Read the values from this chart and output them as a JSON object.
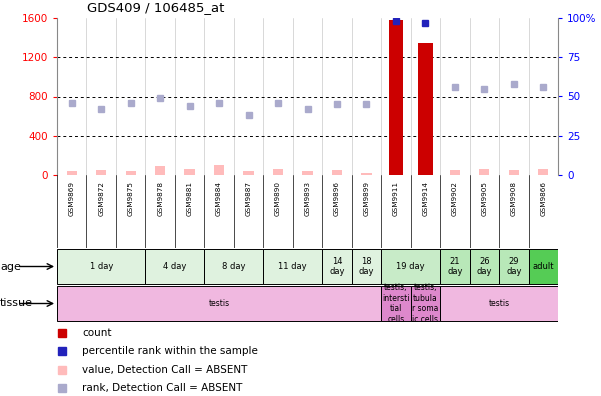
{
  "title": "GDS409 / 106485_at",
  "samples": [
    "GSM9869",
    "GSM9872",
    "GSM9875",
    "GSM9878",
    "GSM9881",
    "GSM9884",
    "GSM9887",
    "GSM9890",
    "GSM9893",
    "GSM9896",
    "GSM9899",
    "GSM9911",
    "GSM9914",
    "GSM9902",
    "GSM9905",
    "GSM9908",
    "GSM9866"
  ],
  "count_values": [
    null,
    null,
    null,
    null,
    null,
    null,
    null,
    null,
    null,
    null,
    null,
    1580,
    1350,
    null,
    null,
    null,
    null
  ],
  "percentile_rank_pct": [
    null,
    null,
    null,
    null,
    null,
    null,
    null,
    null,
    null,
    null,
    null,
    98,
    97,
    null,
    null,
    null,
    null
  ],
  "absent_value": [
    45,
    55,
    45,
    90,
    60,
    100,
    45,
    65,
    40,
    50,
    25,
    null,
    null,
    55,
    60,
    55,
    65
  ],
  "absent_rank_pct": [
    46,
    42,
    46,
    49,
    44,
    46,
    38,
    46,
    42,
    45,
    45,
    null,
    null,
    56,
    55,
    58,
    56
  ],
  "ylim_left": [
    0,
    1600
  ],
  "ylim_right": [
    0,
    100
  ],
  "yticks_left": [
    0,
    400,
    800,
    1200,
    1600
  ],
  "yticks_right": [
    0,
    25,
    50,
    75,
    100
  ],
  "age_groups": [
    {
      "label": "1 day",
      "start": 0,
      "end": 3,
      "color": "#dff2df"
    },
    {
      "label": "4 day",
      "start": 3,
      "end": 5,
      "color": "#dff2df"
    },
    {
      "label": "8 day",
      "start": 5,
      "end": 7,
      "color": "#dff2df"
    },
    {
      "label": "11 day",
      "start": 7,
      "end": 9,
      "color": "#dff2df"
    },
    {
      "label": "14\nday",
      "start": 9,
      "end": 10,
      "color": "#dff2df"
    },
    {
      "label": "18\nday",
      "start": 10,
      "end": 11,
      "color": "#dff2df"
    },
    {
      "label": "19 day",
      "start": 11,
      "end": 13,
      "color": "#c8ebc8"
    },
    {
      "label": "21\nday",
      "start": 13,
      "end": 14,
      "color": "#b8e8b8"
    },
    {
      "label": "26\nday",
      "start": 14,
      "end": 15,
      "color": "#b8e8b8"
    },
    {
      "label": "29\nday",
      "start": 15,
      "end": 16,
      "color": "#b8e8b8"
    },
    {
      "label": "adult",
      "start": 16,
      "end": 17,
      "color": "#55cc55"
    }
  ],
  "tissue_groups": [
    {
      "label": "testis",
      "start": 0,
      "end": 11,
      "color": "#f0b8e0"
    },
    {
      "label": "testis,\nintersti\ntial\ncells",
      "start": 11,
      "end": 12,
      "color": "#dd88cc"
    },
    {
      "label": "testis,\ntubula\nr soma\nic cells",
      "start": 12,
      "end": 13,
      "color": "#dd88cc"
    },
    {
      "label": "testis",
      "start": 13,
      "end": 17,
      "color": "#f0b8e0"
    }
  ],
  "color_count": "#cc0000",
  "color_rank": "#2222bb",
  "color_absent_value": "#ffbbbb",
  "color_absent_rank": "#aaaacc",
  "bg_color": "#ffffff",
  "grid_color": "#000000",
  "sample_bg": "#cccccc",
  "spine_color": "#888888"
}
